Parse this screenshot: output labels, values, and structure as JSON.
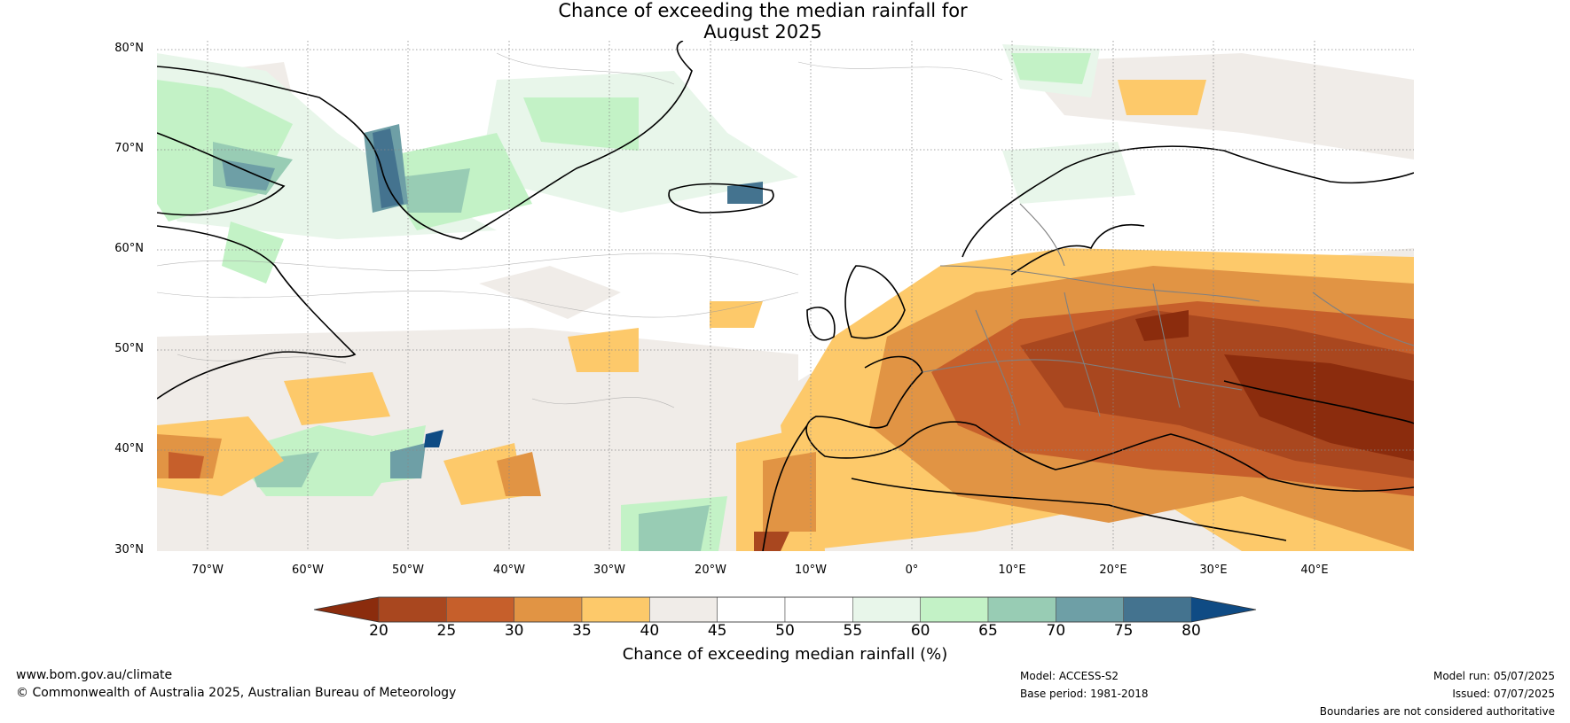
{
  "title": {
    "line1": "Chance of exceeding the median rainfall for",
    "line2": "August 2025"
  },
  "map": {
    "lat_labels": [
      "80°N",
      "70°N",
      "60°N",
      "50°N",
      "40°N",
      "30°N"
    ],
    "lon_labels": [
      "70°W",
      "60°W",
      "50°W",
      "40°W",
      "30°W",
      "20°W",
      "10°W",
      "0°",
      "10°E",
      "20°E",
      "30°E",
      "40°E"
    ],
    "extent": {
      "lon": [
        -75,
        50
      ],
      "lat": [
        30,
        81
      ]
    }
  },
  "colorbar": {
    "ticks": [
      "20",
      "25",
      "30",
      "35",
      "40",
      "45",
      "50",
      "55",
      "60",
      "65",
      "70",
      "75",
      "80"
    ],
    "colors": [
      "#8b2c0d",
      "#a9471f",
      "#c65f2b",
      "#e19444",
      "#fdc96a",
      "#f0ece8",
      "#ffffff",
      "#ffffff",
      "#e8f6ea",
      "#c3f2c6",
      "#98ccb4",
      "#6e9fa6",
      "#44738f",
      "#0f4b84"
    ],
    "label": "Chance of exceeding median rainfall (%)"
  },
  "footer": {
    "url": "www.bom.gov.au/climate",
    "copyright": "© Commonwealth of Australia 2025, Australian Bureau of Meteorology",
    "model": "Model: ACCESS-S2",
    "base_period": "Base period: 1981-2018",
    "model_run": "Model run: 05/07/2025",
    "issued": "Issued: 07/07/2025",
    "disclaimer": "Boundaries are not considered authoritative"
  }
}
